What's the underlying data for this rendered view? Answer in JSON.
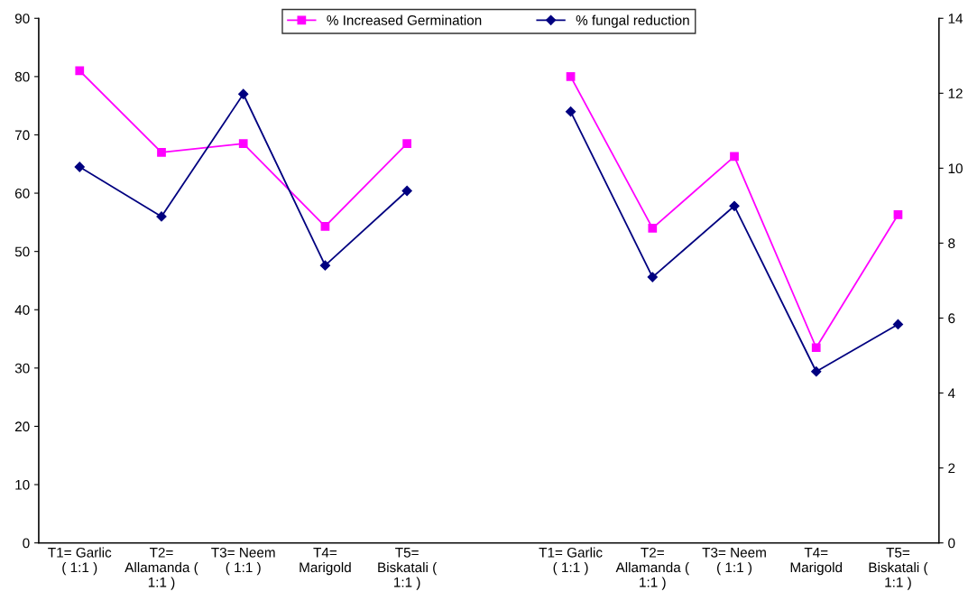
{
  "chart_data": {
    "type": "line",
    "categories": [
      "T1= Garlic\n( 1:1 )",
      "T2=\nAllamanda (\n1:1 )",
      "T3= Neem\n( 1:1 )",
      "T4=\nMarigold",
      "T5=\nBiskatali (\n1:1 )",
      null,
      "T1= Garlic\n( 1:1 )",
      "T2=\nAllamanda (\n1:1 )",
      "T3= Neem\n( 1:1 )",
      "T4=\nMarigold",
      "T5=\nBiskatali (\n1:1 )"
    ],
    "series": [
      {
        "name": "% Increased Germination",
        "color": "#ff00ff",
        "marker": "square",
        "values": [
          81,
          67,
          68.5,
          54.3,
          68.5,
          null,
          80,
          54,
          66.3,
          33.5,
          56.3
        ]
      },
      {
        "name": "% fungal reduction",
        "color": "#000080",
        "marker": "diamond",
        "values": [
          64.5,
          56,
          77,
          47.6,
          60.4,
          null,
          74,
          45.6,
          57.8,
          29.4,
          37.5
        ]
      }
    ],
    "ylim": [
      0,
      90
    ],
    "yticks": [
      0,
      10,
      20,
      30,
      40,
      50,
      60,
      70,
      80,
      90
    ],
    "y2lim": [
      0,
      14
    ],
    "y2ticks": [
      0,
      2,
      4,
      6,
      8,
      10,
      12,
      14
    ],
    "legend": "top",
    "grid": false
  }
}
